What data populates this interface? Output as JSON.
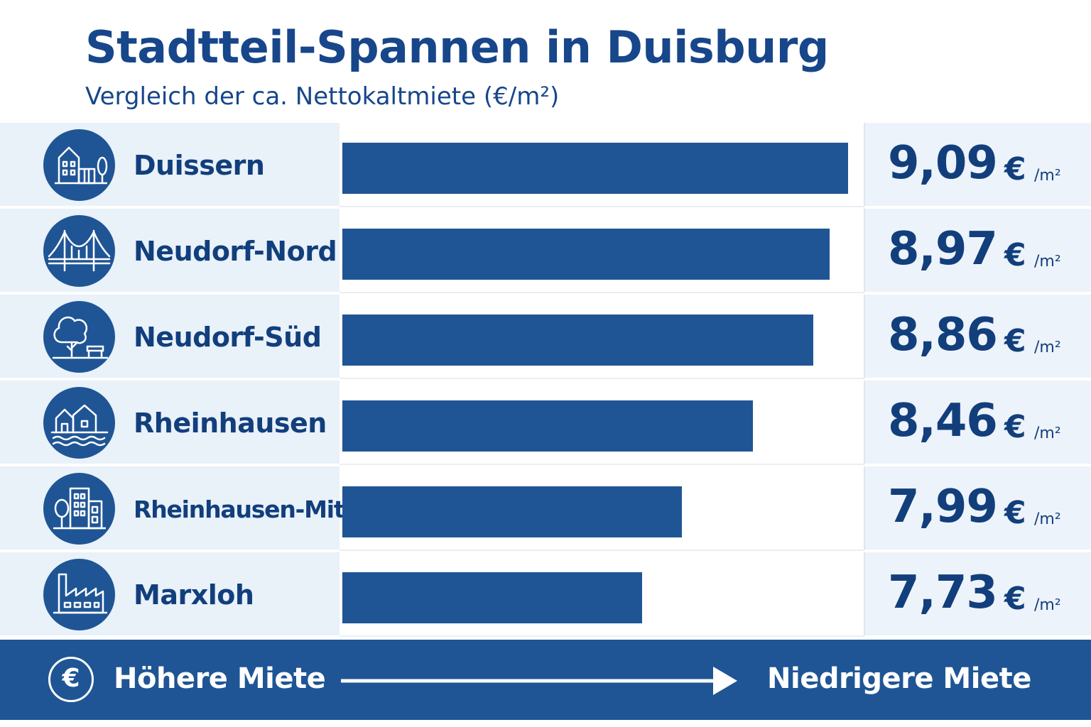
{
  "title": "Stadtteil-Spannen in Duisburg",
  "subtitle": "Vergleich der ca. Nettokaltmiete (€/m²)",
  "chart_data": {
    "type": "bar",
    "orientation": "horizontal",
    "title": "Stadtteil-Spannen in Duisburg",
    "subtitle": "Vergleich der ca. Nettokaltmiete (€/m²)",
    "categories": [
      "Duissern",
      "Neudorf-Nord",
      "Neudorf-Süd",
      "Rheinhausen",
      "Rheinhausen-Mitte",
      "Marxloh"
    ],
    "values": [
      9.09,
      8.97,
      8.86,
      8.46,
      7.99,
      7.73
    ],
    "value_labels": [
      "9,09",
      "8,97",
      "8,86",
      "8,46",
      "7,99",
      "7,73"
    ],
    "currency": "€",
    "unit": "/m²",
    "xlim": [
      5.75,
      9.09
    ],
    "grid": false,
    "legend": "none",
    "bar_color": "#1f5595"
  },
  "rows": [
    {
      "name": "Duissern",
      "icon": "town-house-icon",
      "value_label": "9,09",
      "currency": "€",
      "unit": "/m²"
    },
    {
      "name": "Neudorf-Nord",
      "icon": "bridge-icon",
      "value_label": "8,97",
      "currency": "€",
      "unit": "/m²"
    },
    {
      "name": "Neudorf-Süd",
      "icon": "tree-bench-icon",
      "value_label": "8,86",
      "currency": "€",
      "unit": "/m²"
    },
    {
      "name": "Rheinhausen",
      "icon": "houses-water-icon",
      "value_label": "8,46",
      "currency": "€",
      "unit": "/m²"
    },
    {
      "name": "Rheinhausen-Mitte",
      "icon": "apartment-tree-icon",
      "value_label": "7,99",
      "currency": "€",
      "unit": "/m²"
    },
    {
      "name": "Marxloh",
      "icon": "factory-icon",
      "value_label": "7,73",
      "currency": "€",
      "unit": "/m²"
    }
  ],
  "footer": {
    "icon": "euro-icon",
    "euro_symbol": "€",
    "left_label": "Höhere Miete",
    "arrow_icon": "arrow-right-icon",
    "right_label": "Niedrigere Miete"
  },
  "colors": {
    "primary": "#1f5595",
    "text": "#123f7c",
    "row_background": "#e9f1f9"
  }
}
